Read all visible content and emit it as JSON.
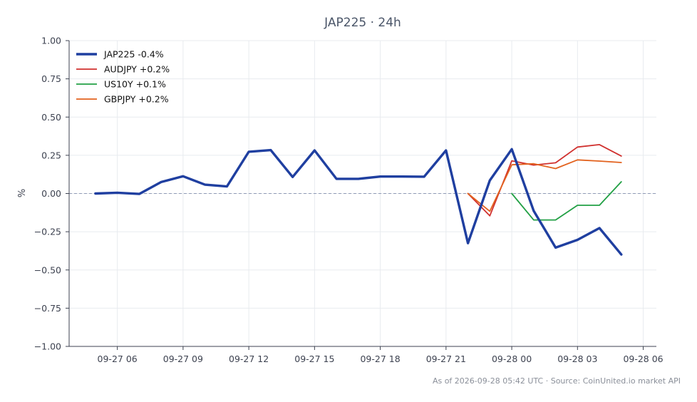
{
  "chart_data": {
    "type": "line",
    "title": "JAP225 · 24h",
    "xlabel": "",
    "ylabel": "%",
    "ylim": [
      -1.0,
      1.0
    ],
    "yticks": [
      "1.00",
      "0.75",
      "0.50",
      "0.25",
      "0.00",
      "−0.25",
      "−0.50",
      "−0.75",
      "−1.00"
    ],
    "ytick_values": [
      1.0,
      0.75,
      0.5,
      0.25,
      0.0,
      -0.25,
      -0.5,
      -0.75,
      -1.0
    ],
    "xlim": [
      "2026-09-27 03:48",
      "2026-09-28 06:36"
    ],
    "xticks": [
      "09-27 06",
      "09-27 09",
      "09-27 12",
      "09-27 15",
      "09-27 18",
      "09-27 21",
      "09-28 00",
      "09-28 03",
      "09-28 06"
    ],
    "xtick_times": [
      "2026-09-27 06:00",
      "2026-09-27 09:00",
      "2026-09-27 12:00",
      "2026-09-27 15:00",
      "2026-09-27 18:00",
      "2026-09-27 21:00",
      "2026-09-28 00:00",
      "2026-09-28 03:00",
      "2026-09-28 06:00"
    ],
    "grid": true,
    "zero_line": true,
    "legend_position": "top-left",
    "series": [
      {
        "name": "JAP225 -0.4%",
        "color": "#1f3fa0",
        "width": "thick",
        "points": [
          [
            "2026-09-27 05:00",
            0.0
          ],
          [
            "2026-09-27 06:00",
            0.005
          ],
          [
            "2026-09-27 07:00",
            -0.003
          ],
          [
            "2026-09-27 08:00",
            0.075
          ],
          [
            "2026-09-27 09:00",
            0.113
          ],
          [
            "2026-09-27 10:00",
            0.058
          ],
          [
            "2026-09-27 11:00",
            0.046
          ],
          [
            "2026-09-27 12:00",
            0.273
          ],
          [
            "2026-09-27 13:00",
            0.284
          ],
          [
            "2026-09-27 14:00",
            0.108
          ],
          [
            "2026-09-27 15:00",
            0.282
          ],
          [
            "2026-09-27 16:00",
            0.096
          ],
          [
            "2026-09-27 17:00",
            0.096
          ],
          [
            "2026-09-27 18:00",
            0.111
          ],
          [
            "2026-09-27 19:00",
            0.111
          ],
          [
            "2026-09-27 20:00",
            0.11
          ],
          [
            "2026-09-27 21:00",
            0.282
          ],
          [
            "2026-09-27 22:00",
            -0.325
          ],
          [
            "2026-09-27 23:00",
            0.086
          ],
          [
            "2026-09-28 00:00",
            0.29
          ],
          [
            "2026-09-28 01:00",
            -0.113
          ],
          [
            "2026-09-28 02:00",
            -0.354
          ],
          [
            "2026-09-28 03:00",
            -0.303
          ],
          [
            "2026-09-28 04:00",
            -0.226
          ],
          [
            "2026-09-28 05:00",
            -0.399
          ]
        ]
      },
      {
        "name": "AUDJPY +0.2%",
        "color": "#d0302e",
        "width": "thin",
        "points": [
          [
            "2026-09-27 22:00",
            0.0
          ],
          [
            "2026-09-27 23:00",
            -0.146
          ],
          [
            "2026-09-28 00:00",
            0.214
          ],
          [
            "2026-09-28 01:00",
            0.186
          ],
          [
            "2026-09-28 02:00",
            0.201
          ],
          [
            "2026-09-28 03:00",
            0.304
          ],
          [
            "2026-09-28 04:00",
            0.32
          ],
          [
            "2026-09-28 05:00",
            0.245
          ]
        ]
      },
      {
        "name": "US10Y +0.1%",
        "color": "#22a045",
        "width": "thin",
        "points": [
          [
            "2026-09-28 00:00",
            0.0
          ],
          [
            "2026-09-28 01:00",
            -0.173
          ],
          [
            "2026-09-28 02:00",
            -0.173
          ],
          [
            "2026-09-28 03:00",
            -0.077
          ],
          [
            "2026-09-28 04:00",
            -0.077
          ],
          [
            "2026-09-28 05:00",
            0.077
          ]
        ]
      },
      {
        "name": "GBPJPY +0.2%",
        "color": "#e2621e",
        "width": "thin",
        "points": [
          [
            "2026-09-27 22:00",
            0.0
          ],
          [
            "2026-09-27 23:00",
            -0.116
          ],
          [
            "2026-09-28 00:00",
            0.188
          ],
          [
            "2026-09-28 01:00",
            0.195
          ],
          [
            "2026-09-28 02:00",
            0.163
          ],
          [
            "2026-09-28 03:00",
            0.22
          ],
          [
            "2026-09-28 04:00",
            0.212
          ],
          [
            "2026-09-28 05:00",
            0.203
          ]
        ]
      }
    ]
  },
  "footer": "As of 2026-09-28 05:42 UTC · Source: CoinUnited.io market API"
}
